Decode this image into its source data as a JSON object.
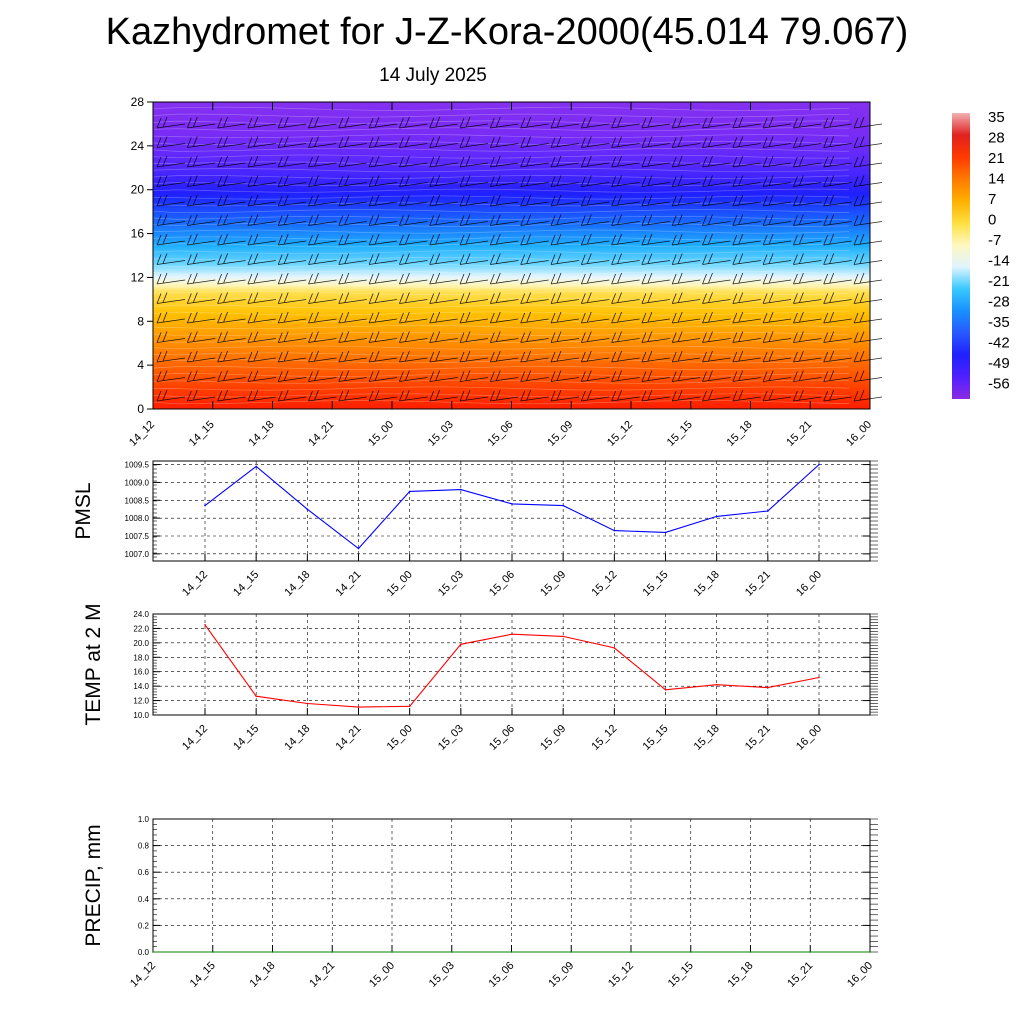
{
  "header": {
    "title": "Kazhydromet for J-Z-Kora-2000(45.014 79.067)",
    "subtitle": "14 July 2025"
  },
  "chart_data": [
    {
      "type": "heatmap",
      "xlabel": "",
      "ylabel": "",
      "x_ticks": [
        "14_12",
        "14_15",
        "14_18",
        "14_21",
        "15_00",
        "15_03",
        "15_06",
        "15_09",
        "15_12",
        "15_15",
        "15_18",
        "15_21",
        "16_00"
      ],
      "ylim": [
        0,
        28
      ],
      "y_ticks": [
        0,
        4,
        8,
        12,
        16,
        20,
        24,
        28
      ],
      "colorbar": {
        "labels": [
          "35",
          "28",
          "21",
          "14",
          "7",
          "0",
          "-7",
          "-14",
          "-21",
          "-28",
          "-35",
          "-42",
          "-49",
          "-56"
        ],
        "colors": [
          "#f2b2b2",
          "#e02020",
          "#ff3a00",
          "#ff7a00",
          "#ffb000",
          "#ffe040",
          "#fff7c0",
          "#dff4ff",
          "#38c8ff",
          "#1890ff",
          "#2858ff",
          "#2020ff",
          "#5020ff",
          "#8a2be2"
        ]
      },
      "wind_barbs": "shown"
    },
    {
      "type": "line",
      "ylabel": "PMSL",
      "categories": [
        "14_12",
        "14_15",
        "14_18",
        "14_21",
        "15_00",
        "15_03",
        "15_06",
        "15_09",
        "15_12",
        "15_15",
        "15_18",
        "15_21",
        "16_00"
      ],
      "ylim": [
        6.8,
        9.6
      ],
      "y_ticks": [
        "1007.0",
        "1007.5",
        "1008.0",
        "1008.5",
        "1009.0",
        "1009.5"
      ],
      "y_base": 1000,
      "values": [
        1008.35,
        1009.45,
        1008.25,
        1007.15,
        1008.75,
        1008.8,
        1008.4,
        1008.35,
        1007.65,
        1007.6,
        1008.05,
        1008.2,
        1009.5
      ],
      "color": "#0000ff",
      "grid": true
    },
    {
      "type": "line",
      "ylabel": "TEMP at 2 M",
      "categories": [
        "14_12",
        "14_15",
        "14_18",
        "14_21",
        "15_00",
        "15_03",
        "15_06",
        "15_09",
        "15_12",
        "15_15",
        "15_18",
        "15_21",
        "16_00"
      ],
      "ylim": [
        10,
        24
      ],
      "y_ticks": [
        "10.0",
        "12.0",
        "14.0",
        "16.0",
        "18.0",
        "20.0",
        "22.0",
        "24.0"
      ],
      "values": [
        22.5,
        12.6,
        11.6,
        11.1,
        11.2,
        19.8,
        21.2,
        20.9,
        19.3,
        13.5,
        14.2,
        13.8,
        15.2
      ],
      "color": "#ff0000",
      "grid": true
    },
    {
      "type": "line",
      "ylabel": "PRECIP, mm",
      "categories": [
        "14_12",
        "14_15",
        "14_18",
        "14_21",
        "15_00",
        "15_03",
        "15_06",
        "15_09",
        "15_12",
        "15_15",
        "15_18",
        "15_21",
        "16_00"
      ],
      "ylim": [
        0,
        1
      ],
      "y_ticks": [
        "0.0",
        "0.2",
        "0.4",
        "0.6",
        "0.8",
        "1.0"
      ],
      "values": [
        0,
        0,
        0,
        0,
        0,
        0,
        0,
        0,
        0,
        0,
        0,
        0,
        0
      ],
      "color": "#008000",
      "grid": true
    }
  ]
}
